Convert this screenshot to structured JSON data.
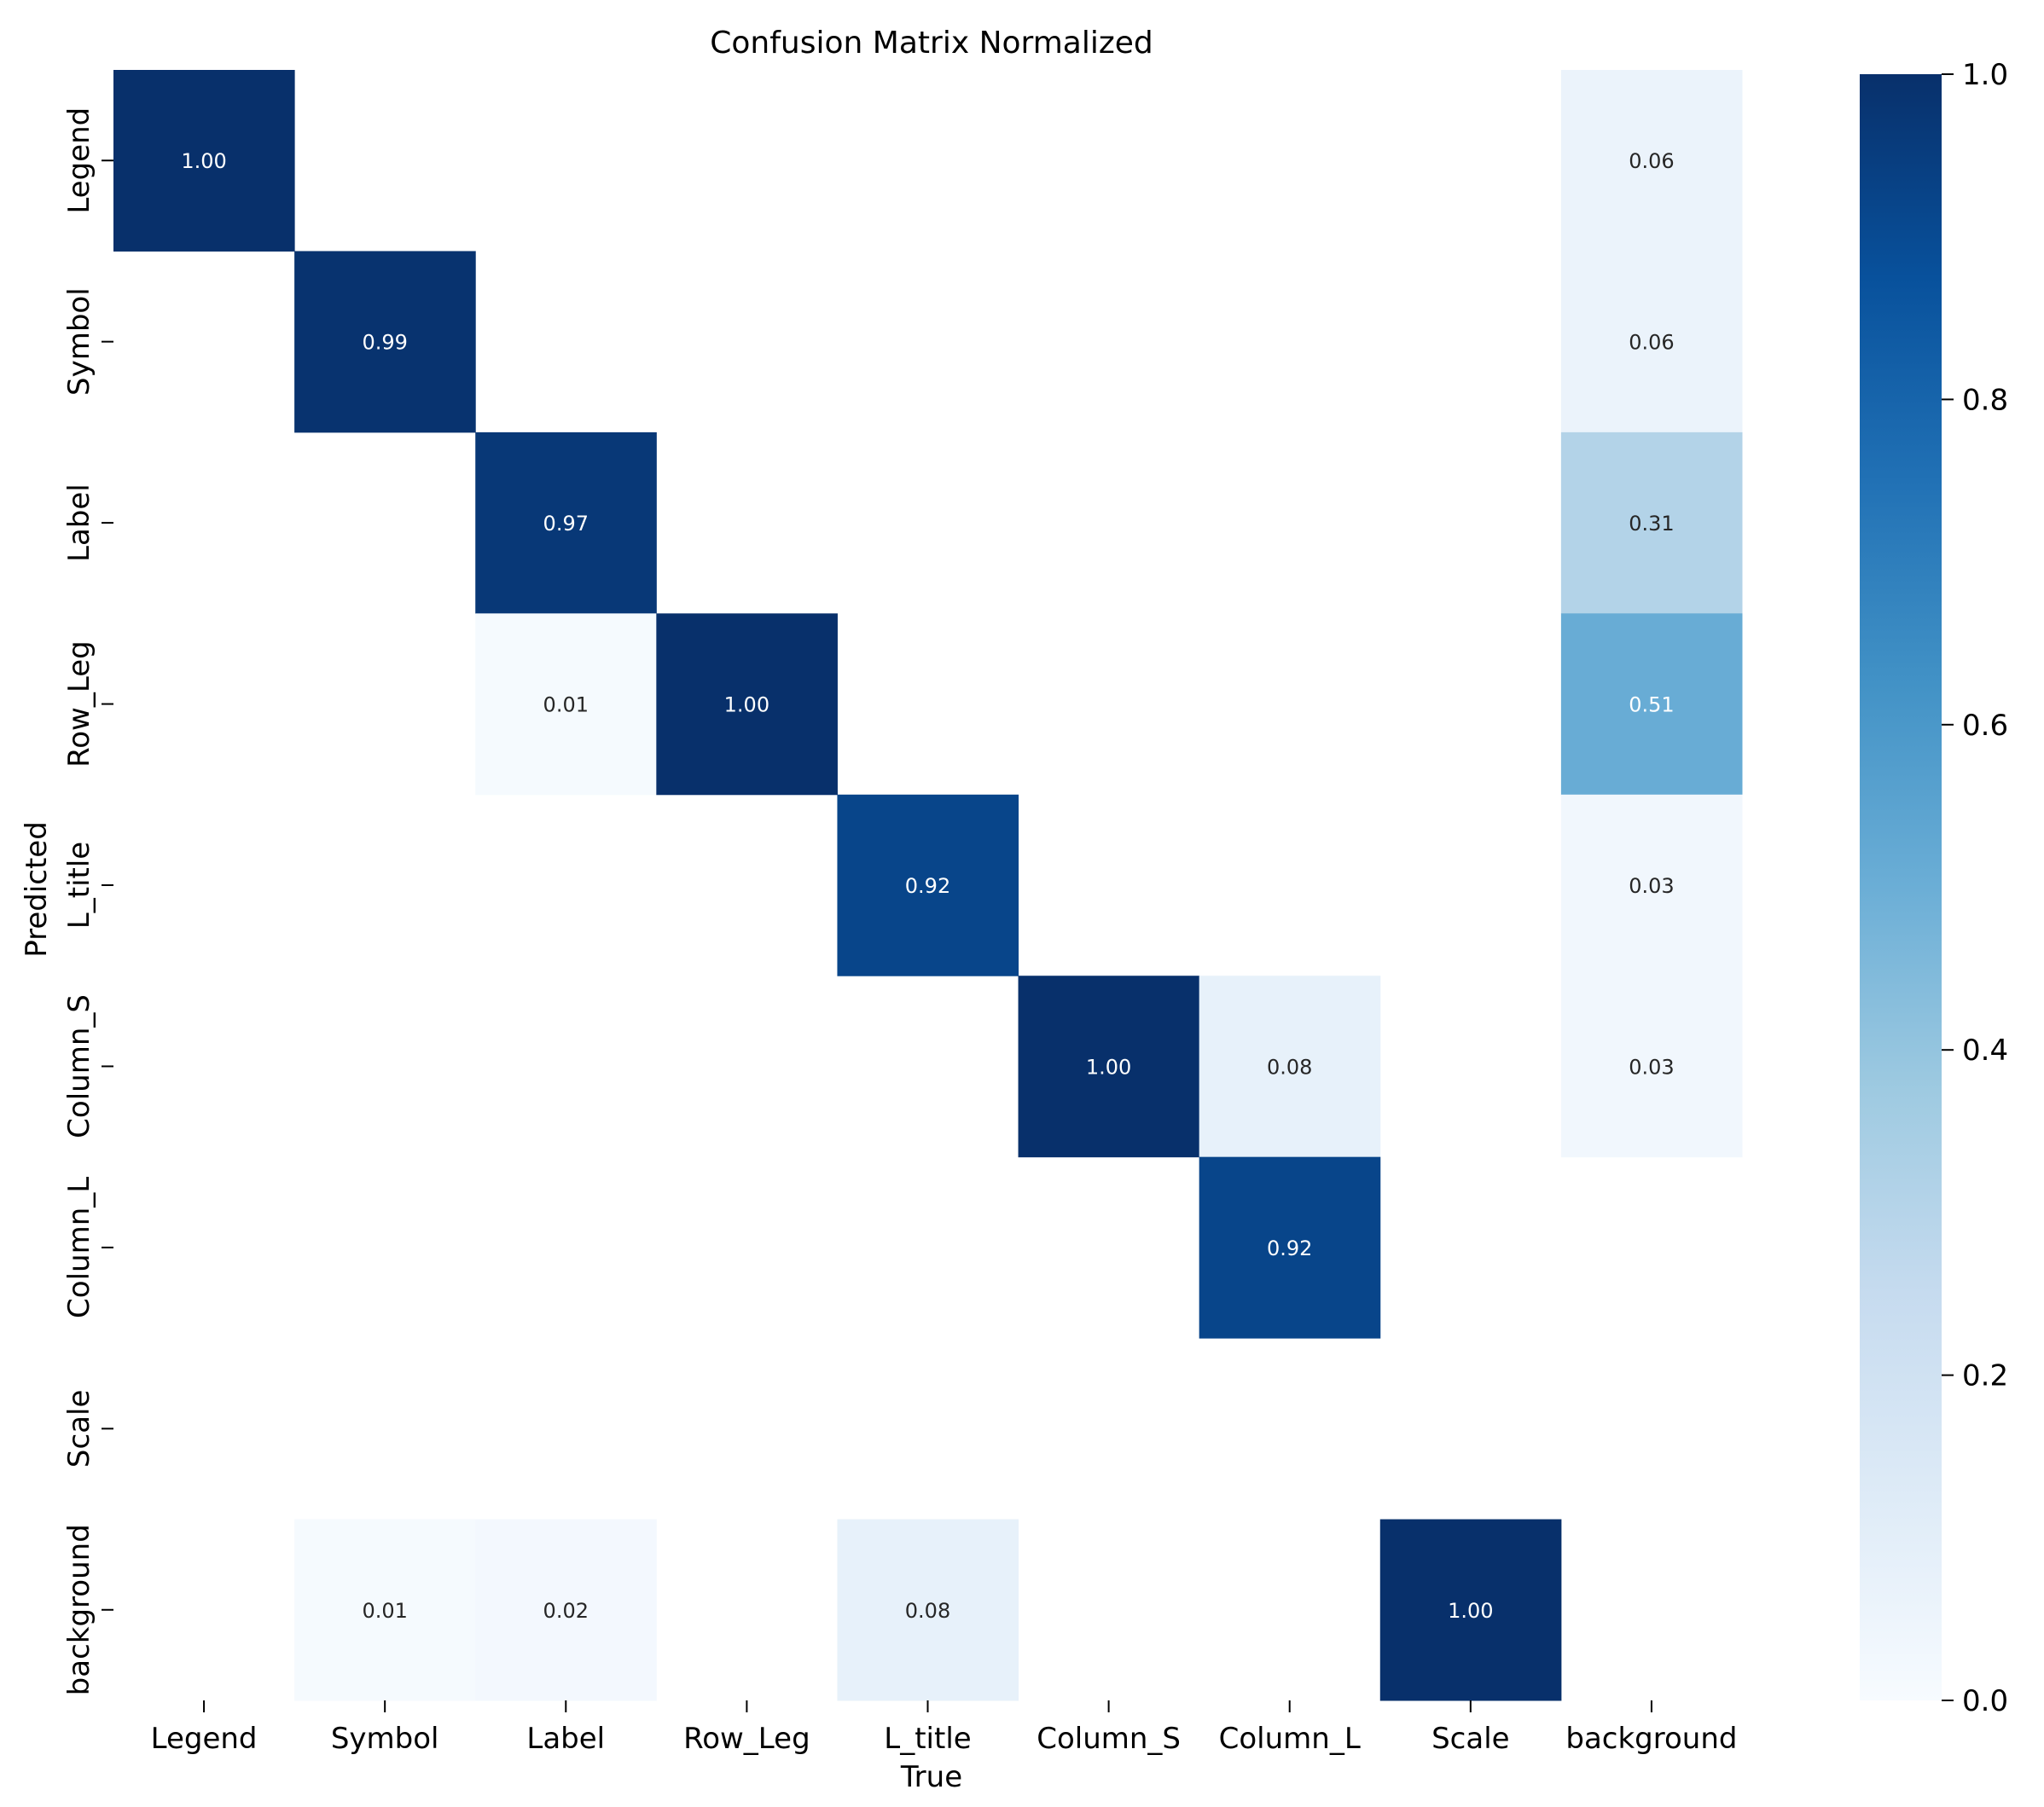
{
  "chart_data": {
    "type": "heatmap",
    "title": "Confusion Matrix Normalized",
    "xlabel": "True",
    "ylabel": "Predicted",
    "x_categories": [
      "Legend",
      "Symbol",
      "Label",
      "Row_Leg",
      "L_title",
      "Column_S",
      "Column_L",
      "Scale",
      "background"
    ],
    "y_categories": [
      "Legend",
      "Symbol",
      "Label",
      "Row_Leg",
      "L_title",
      "Column_S",
      "Column_L",
      "Scale",
      "background"
    ],
    "values": [
      [
        1.0,
        null,
        null,
        null,
        null,
        null,
        null,
        null,
        0.06
      ],
      [
        null,
        0.99,
        null,
        null,
        null,
        null,
        null,
        null,
        0.06
      ],
      [
        null,
        null,
        0.97,
        null,
        null,
        null,
        null,
        null,
        0.31
      ],
      [
        null,
        null,
        0.01,
        1.0,
        null,
        null,
        null,
        null,
        0.51
      ],
      [
        null,
        null,
        null,
        null,
        0.92,
        null,
        null,
        null,
        0.03
      ],
      [
        null,
        null,
        null,
        null,
        null,
        1.0,
        0.08,
        null,
        0.03
      ],
      [
        null,
        null,
        null,
        null,
        null,
        null,
        0.92,
        null,
        null
      ],
      [
        null,
        null,
        null,
        null,
        null,
        null,
        null,
        null,
        null
      ],
      [
        null,
        0.01,
        0.02,
        null,
        0.08,
        null,
        null,
        1.0,
        null
      ]
    ],
    "value_labels": [
      [
        "1.00",
        "",
        "",
        "",
        "",
        "",
        "",
        "",
        "0.06"
      ],
      [
        "",
        "0.99",
        "",
        "",
        "",
        "",
        "",
        "",
        "0.06"
      ],
      [
        "",
        "",
        "0.97",
        "",
        "",
        "",
        "",
        "",
        "0.31"
      ],
      [
        "",
        "",
        "0.01",
        "1.00",
        "",
        "",
        "",
        "",
        "0.51"
      ],
      [
        "",
        "",
        "",
        "",
        "0.92",
        "",
        "",
        "",
        "0.03"
      ],
      [
        "",
        "",
        "",
        "",
        "",
        "1.00",
        "0.08",
        "",
        "0.03"
      ],
      [
        "",
        "",
        "",
        "",
        "",
        "",
        "0.92",
        "",
        ""
      ],
      [
        "",
        "",
        "",
        "",
        "",
        "",
        "",
        "",
        ""
      ],
      [
        "",
        "0.01",
        "0.02",
        "",
        "0.08",
        "",
        "",
        "1.00",
        ""
      ]
    ],
    "colormap": "Blues",
    "vmin": 0.0,
    "vmax": 1.0,
    "colorbar_ticks": [
      "0.0",
      "0.2",
      "0.4",
      "0.6",
      "0.8",
      "1.0"
    ],
    "colorbar_tick_values": [
      0.0,
      0.2,
      0.4,
      0.6,
      0.8,
      1.0
    ],
    "grid": false
  }
}
